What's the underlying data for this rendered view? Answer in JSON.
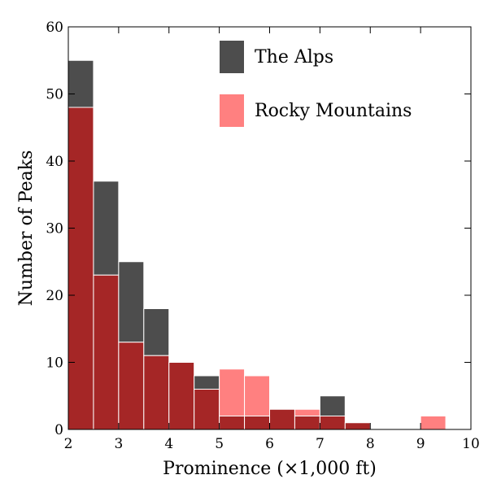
{
  "chart_data": {
    "type": "bar",
    "title": "",
    "xlabel": "Prominence (×1,000 ft)",
    "ylabel": "Number of Peaks",
    "xlim": [
      2,
      10
    ],
    "ylim": [
      0,
      60
    ],
    "xticks": [
      "2",
      "3",
      "4",
      "5",
      "6",
      "7",
      "8",
      "9",
      "10"
    ],
    "yticks": [
      "0",
      "10",
      "20",
      "30",
      "40",
      "50",
      "60"
    ],
    "bin_edges": [
      2,
      2.5,
      3,
      3.5,
      4,
      4.5,
      5,
      5.5,
      6,
      6.5,
      7,
      7.5,
      8,
      8.5,
      9,
      9.5,
      10
    ],
    "legend_position": "top-right",
    "grid": false,
    "series": [
      {
        "name": "The Alps",
        "color": "#4d4d4d",
        "values": [
          55,
          37,
          25,
          18,
          10,
          8,
          2,
          2,
          3,
          2,
          5,
          1,
          0,
          0,
          0,
          0
        ]
      },
      {
        "name": "Rocky Mountains",
        "color": "#ff8080",
        "values": [
          48,
          23,
          13,
          11,
          10,
          6,
          9,
          8,
          3,
          3,
          2,
          1,
          0,
          0,
          2,
          0
        ]
      }
    ],
    "overlap_color": "#a52626"
  }
}
